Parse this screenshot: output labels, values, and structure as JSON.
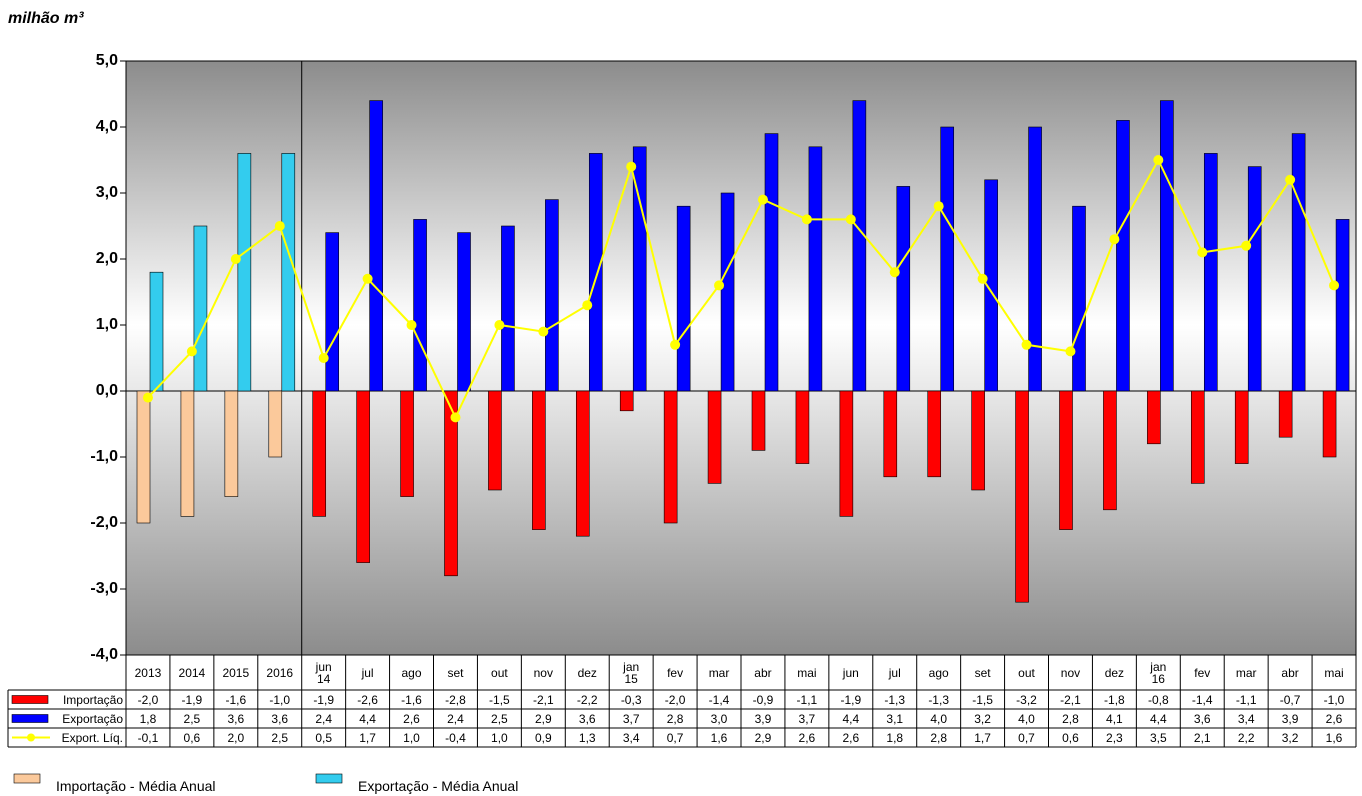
{
  "chart_data": {
    "type": "bar",
    "y_label": "milhão m³",
    "ylim": [
      -4,
      5
    ],
    "yticks": [
      {
        "value": -4,
        "label": "-4,0"
      },
      {
        "value": -3,
        "label": "-3,0"
      },
      {
        "value": -2,
        "label": "-2,0"
      },
      {
        "value": -1,
        "label": "-1,0"
      },
      {
        "value": 0,
        "label": "0,0"
      },
      {
        "value": 1,
        "label": "1,0"
      },
      {
        "value": 2,
        "label": "2,0"
      },
      {
        "value": 3,
        "label": "3,0"
      },
      {
        "value": 4,
        "label": "4,0"
      },
      {
        "value": 5,
        "label": "5,0"
      }
    ],
    "categories": [
      "2013",
      "2014",
      "2015",
      "2016",
      "jun\n14",
      "jul",
      "ago",
      "set",
      "out",
      "nov",
      "dez",
      "jan\n15",
      "fev",
      "mar",
      "abr",
      "mai",
      "jun",
      "jul",
      "ago",
      "set",
      "out",
      "nov",
      "dez",
      "jan\n16",
      "fev",
      "mar",
      "abr",
      "mai"
    ],
    "series": [
      {
        "name": "Importação",
        "type": "bar",
        "color": "#ff0000",
        "colors": [
          "#fbc99b",
          "#fbc99b",
          "#fbc99b",
          "#fbc99b",
          "#ff0000",
          "#ff0000",
          "#ff0000",
          "#ff0000",
          "#ff0000",
          "#ff0000",
          "#ff0000",
          "#ff0000",
          "#ff0000",
          "#ff0000",
          "#ff0000",
          "#ff0000",
          "#ff0000",
          "#ff0000",
          "#ff0000",
          "#ff0000",
          "#ff0000",
          "#ff0000",
          "#ff0000",
          "#ff0000",
          "#ff0000",
          "#ff0000",
          "#ff0000",
          "#ff0000"
        ],
        "values": [
          -2.0,
          -1.9,
          -1.6,
          -1.0,
          -1.9,
          -2.6,
          -1.6,
          -2.8,
          -1.5,
          -2.1,
          -2.2,
          -0.3,
          -2.0,
          -1.4,
          -0.9,
          -1.1,
          -1.9,
          -1.3,
          -1.3,
          -1.5,
          -3.2,
          -2.1,
          -1.8,
          -0.8,
          -1.4,
          -1.1,
          -0.7,
          -1.0
        ],
        "value_labels": [
          "-2,0",
          "-1,9",
          "-1,6",
          "-1,0",
          "-1,9",
          "-2,6",
          "-1,6",
          "-2,8",
          "-1,5",
          "-2,1",
          "-2,2",
          "-0,3",
          "-2,0",
          "-1,4",
          "-0,9",
          "-1,1",
          "-1,9",
          "-1,3",
          "-1,3",
          "-1,5",
          "-3,2",
          "-2,1",
          "-1,8",
          "-0,8",
          "-1,4",
          "-1,1",
          "-0,7",
          "-1,0"
        ]
      },
      {
        "name": "Exportação",
        "type": "bar",
        "color": "#0000ff",
        "colors": [
          "#33ccee",
          "#33ccee",
          "#33ccee",
          "#33ccee",
          "#0000ff",
          "#0000ff",
          "#0000ff",
          "#0000ff",
          "#0000ff",
          "#0000ff",
          "#0000ff",
          "#0000ff",
          "#0000ff",
          "#0000ff",
          "#0000ff",
          "#0000ff",
          "#0000ff",
          "#0000ff",
          "#0000ff",
          "#0000ff",
          "#0000ff",
          "#0000ff",
          "#0000ff",
          "#0000ff",
          "#0000ff",
          "#0000ff",
          "#0000ff",
          "#0000ff"
        ],
        "values": [
          1.8,
          2.5,
          3.6,
          3.6,
          2.4,
          4.4,
          2.6,
          2.4,
          2.5,
          2.9,
          3.6,
          3.7,
          2.8,
          3.0,
          3.9,
          3.7,
          4.4,
          3.1,
          4.0,
          3.2,
          4.0,
          2.8,
          4.1,
          4.4,
          3.6,
          3.4,
          3.9,
          2.6
        ],
        "value_labels": [
          "1,8",
          "2,5",
          "3,6",
          "3,6",
          "2,4",
          "4,4",
          "2,6",
          "2,4",
          "2,5",
          "2,9",
          "3,6",
          "3,7",
          "2,8",
          "3,0",
          "3,9",
          "3,7",
          "4,4",
          "3,1",
          "4,0",
          "3,2",
          "4,0",
          "2,8",
          "4,1",
          "4,4",
          "3,6",
          "3,4",
          "3,9",
          "2,6"
        ]
      },
      {
        "name": "Export. Líq.",
        "type": "line",
        "color": "#ffff00",
        "values": [
          -0.1,
          0.6,
          2.0,
          2.5,
          0.5,
          1.7,
          1.0,
          -0.4,
          1.0,
          0.9,
          1.3,
          3.4,
          0.7,
          1.6,
          2.9,
          2.6,
          2.6,
          1.8,
          2.8,
          1.7,
          0.7,
          0.6,
          2.3,
          3.5,
          2.1,
          2.2,
          3.2,
          1.6
        ],
        "value_labels": [
          "-0,1",
          "0,6",
          "2,0",
          "2,5",
          "0,5",
          "1,7",
          "1,0",
          "-0,4",
          "1,0",
          "0,9",
          "1,3",
          "3,4",
          "0,7",
          "1,6",
          "2,9",
          "2,6",
          "2,6",
          "1,8",
          "2,8",
          "1,7",
          "0,7",
          "0,6",
          "2,3",
          "3,5",
          "2,1",
          "2,2",
          "3,2",
          "1,6"
        ]
      }
    ],
    "annual_legend": [
      {
        "name": "Importação - Média Anual",
        "color": "#fbc99b"
      },
      {
        "name": "Exportação - Média Anual",
        "color": "#33ccee"
      }
    ]
  }
}
